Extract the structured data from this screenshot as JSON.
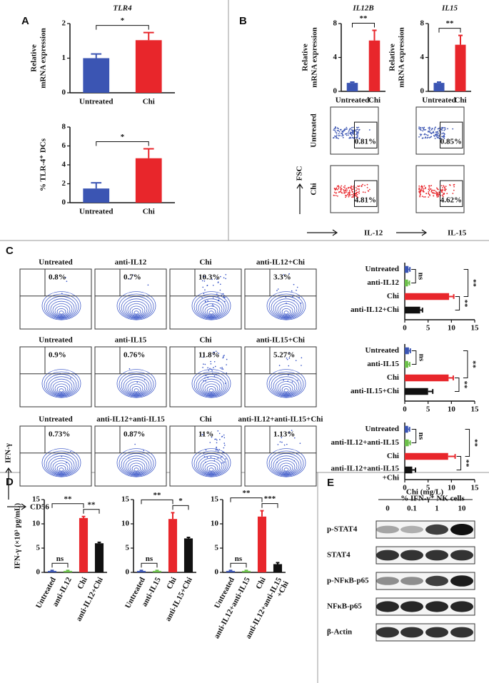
{
  "panel_labels": [
    "A",
    "B",
    "C",
    "D",
    "E"
  ],
  "chart_data": [
    {
      "type": "bar",
      "title": "TLR4",
      "ylabel": [
        "Relative",
        "mRNA expression"
      ],
      "categories": [
        "Untreated",
        "Chi"
      ],
      "colors": [
        "#3b55b3",
        "#e8262b"
      ],
      "values": [
        1.0,
        1.52
      ],
      "errors": [
        0.12,
        0.22
      ],
      "ylim": [
        0,
        2
      ],
      "yticks": [
        0,
        1,
        2
      ],
      "comparisons": [
        {
          "between": [
            "Untreated",
            "Chi"
          ],
          "label": "*"
        }
      ]
    },
    {
      "type": "bar",
      "ylabel": [
        "% TLR-4⁺ DCs"
      ],
      "categories": [
        "Untreated",
        "Chi"
      ],
      "colors": [
        "#3b55b3",
        "#e8262b"
      ],
      "values": [
        1.5,
        4.7
      ],
      "errors": [
        0.6,
        1.0
      ],
      "ylim": [
        0,
        8
      ],
      "yticks": [
        0,
        2,
        4,
        6,
        8
      ],
      "comparisons": [
        {
          "between": [
            "Untreated",
            "Chi"
          ],
          "label": "*"
        }
      ]
    },
    {
      "type": "bar",
      "title": "IL12B",
      "ylabel": [
        "Relative",
        "mRNA expression"
      ],
      "categories": [
        "Untreated",
        "Chi"
      ],
      "colors": [
        "#3b55b3",
        "#e8262b"
      ],
      "values": [
        1.0,
        6.0
      ],
      "errors": [
        0.1,
        1.2
      ],
      "ylim": [
        0,
        8
      ],
      "yticks": [
        0,
        4,
        8
      ],
      "comparisons": [
        {
          "between": [
            "Untreated",
            "Chi"
          ],
          "label": "**"
        }
      ]
    },
    {
      "type": "bar",
      "title": "IL15",
      "ylabel": [
        "Relative",
        "mRNA expression"
      ],
      "categories": [
        "Untreated",
        "Chi"
      ],
      "colors": [
        "#3b55b3",
        "#e8262b"
      ],
      "values": [
        1.0,
        5.5
      ],
      "errors": [
        0.1,
        1.1
      ],
      "ylim": [
        0,
        8
      ],
      "yticks": [
        0,
        4,
        8
      ],
      "comparisons": [
        {
          "between": [
            "Untreated",
            "Chi"
          ],
          "label": "**"
        }
      ]
    },
    {
      "type": "barh",
      "categories": [
        "Untreated",
        "anti-IL12",
        "Chi",
        "anti-IL12+Chi"
      ],
      "colors": [
        "#3b55b3",
        "#6cc04a",
        "#e8262b",
        "#111111"
      ],
      "values": [
        0.8,
        0.7,
        9.5,
        3.3
      ],
      "errors": [
        0.3,
        0.3,
        1.0,
        0.5
      ],
      "xlim": [
        0,
        15
      ],
      "xticks": [
        0,
        5,
        10,
        15
      ],
      "comparisons": [
        {
          "between": [
            "Untreated",
            "anti-IL12"
          ],
          "label": "ns"
        },
        {
          "between": [
            "Untreated",
            "Chi"
          ],
          "label": "**"
        },
        {
          "between": [
            "Chi",
            "anti-IL12+Chi"
          ],
          "label": "**"
        }
      ]
    },
    {
      "type": "barh",
      "categories": [
        "Untreated",
        "anti-IL15",
        "Chi",
        "anti-IL15+Chi"
      ],
      "colors": [
        "#3b55b3",
        "#6cc04a",
        "#e8262b",
        "#111111"
      ],
      "values": [
        0.9,
        0.76,
        9.4,
        5.0
      ],
      "errors": [
        0.3,
        0.3,
        1.0,
        1.0
      ],
      "xlim": [
        0,
        15
      ],
      "xticks": [
        0,
        5,
        10,
        15
      ],
      "comparisons": [
        {
          "between": [
            "Untreated",
            "anti-IL15"
          ],
          "label": "ns"
        },
        {
          "between": [
            "Untreated",
            "Chi"
          ],
          "label": "**"
        },
        {
          "between": [
            "Chi",
            "anti-IL15+Chi"
          ],
          "label": "**"
        }
      ]
    },
    {
      "type": "barh",
      "xlabel": "% IFN-γ⁺ NK cells",
      "categories": [
        "Untreated",
        "anti-IL12+anti-IL15",
        "Chi",
        [
          "anti-IL12+anti-IL15",
          "+Chi"
        ]
      ],
      "colors": [
        "#3b55b3",
        "#6cc04a",
        "#e8262b",
        "#111111"
      ],
      "values": [
        0.73,
        0.87,
        9.3,
        1.6
      ],
      "errors": [
        0.3,
        0.3,
        1.5,
        0.7
      ],
      "xlim": [
        0,
        15
      ],
      "xticks": [
        0,
        5,
        10,
        15
      ],
      "comparisons": [
        {
          "between": [
            "Untreated",
            "anti-IL12+anti-IL15"
          ],
          "label": "ns"
        },
        {
          "between": [
            "Untreated",
            "Chi"
          ],
          "label": "**"
        },
        {
          "between": [
            "Chi",
            [
              "anti-IL12+anti-IL15",
              "+Chi"
            ]
          ],
          "label": "**"
        }
      ]
    },
    {
      "type": "bar",
      "ylabel": [
        "IFN-γ (×10³ pg/mL)"
      ],
      "categories": [
        "Untreated",
        "anti-IL12",
        "Chi",
        "anti-IL12+Chi"
      ],
      "colors": [
        "#3b55b3",
        "#6cc04a",
        "#e8262b",
        "#111111"
      ],
      "values": [
        0.3,
        0.3,
        11.2,
        6.0
      ],
      "errors": [
        0.1,
        0.1,
        0.3,
        0.2
      ],
      "ylim": [
        0,
        15
      ],
      "yticks": [
        0,
        5,
        10,
        15
      ],
      "comparisons": [
        {
          "between": [
            "Untreated",
            "anti-IL12"
          ],
          "label": "ns"
        },
        {
          "between": [
            "Untreated",
            "Chi"
          ],
          "label": "**"
        },
        {
          "between": [
            "Chi",
            "anti-IL12+Chi"
          ],
          "label": "**"
        }
      ]
    },
    {
      "type": "bar",
      "categories": [
        "Untreated",
        "anti-IL15",
        "Chi",
        "anti-IL15+Chi"
      ],
      "colors": [
        "#3b55b3",
        "#6cc04a",
        "#e8262b",
        "#111111"
      ],
      "values": [
        0.3,
        0.3,
        11.0,
        7.0
      ],
      "errors": [
        0.1,
        0.1,
        1.3,
        0.2
      ],
      "ylim": [
        0,
        15
      ],
      "yticks": [
        0,
        5,
        10,
        15
      ],
      "comparisons": [
        {
          "between": [
            "Untreated",
            "anti-IL15"
          ],
          "label": "ns"
        },
        {
          "between": [
            "Untreated",
            "Chi"
          ],
          "label": "**"
        },
        {
          "between": [
            "Chi",
            "anti-IL15+Chi"
          ],
          "label": "*"
        }
      ]
    },
    {
      "type": "bar",
      "categories": [
        "Untreated",
        "anti-IL12+anti-IL15",
        "Chi",
        [
          "anti-IL12+anti-IL15",
          "+Chi"
        ]
      ],
      "colors": [
        "#3b55b3",
        "#6cc04a",
        "#e8262b",
        "#111111"
      ],
      "values": [
        0.3,
        0.3,
        11.5,
        1.7
      ],
      "errors": [
        0.1,
        0.1,
        1.2,
        0.3
      ],
      "ylim": [
        0,
        15
      ],
      "yticks": [
        0,
        5,
        10,
        15
      ],
      "comparisons": [
        {
          "between": [
            "Untreated",
            "anti-IL12+anti-IL15"
          ],
          "label": "ns"
        },
        {
          "between": [
            "Untreated",
            "Chi"
          ],
          "label": "**"
        },
        {
          "between": [
            "Chi",
            [
              "anti-IL12+anti-IL15",
              "+Chi"
            ]
          ],
          "label": "***"
        }
      ]
    }
  ],
  "flow_b": {
    "row_labels": [
      "Untreated",
      "Chi"
    ],
    "y_axis": "FSC",
    "x_axes": [
      "IL-12",
      "IL-15"
    ],
    "gates": [
      [
        "0.81%",
        "0.85%"
      ],
      [
        "4.81%",
        "4.62%"
      ]
    ]
  },
  "flow_c": {
    "y_axis": "IFN-γ",
    "x_axis": "CD56",
    "rows": [
      {
        "titles": [
          "Untreated",
          "anti-IL12",
          "Chi",
          "anti-IL12+Chi"
        ],
        "gates": [
          "0.8%",
          "0.7%",
          "10.3%",
          "3.3%"
        ]
      },
      {
        "titles": [
          "Untreated",
          "anti-IL15",
          "Chi",
          "anti-IL15+Chi"
        ],
        "gates": [
          "0.9%",
          "0.76%",
          "11.8%",
          "5.27%"
        ]
      },
      {
        "titles": [
          "Untreated",
          "anti-IL12+anti-IL15",
          "Chi",
          "anti-IL12+anti-IL15+Chi"
        ],
        "gates": [
          "0.73%",
          "0.87%",
          "11%",
          "1.13%"
        ]
      }
    ]
  },
  "blot": {
    "treatment": "Chi (mg/L)",
    "doses": [
      "0",
      "0.1",
      "1",
      "10"
    ],
    "proteins": [
      "p-STAT4",
      "STAT4",
      "p-NFκB-p65",
      "NFκB-p65",
      "β-Actin"
    ]
  }
}
